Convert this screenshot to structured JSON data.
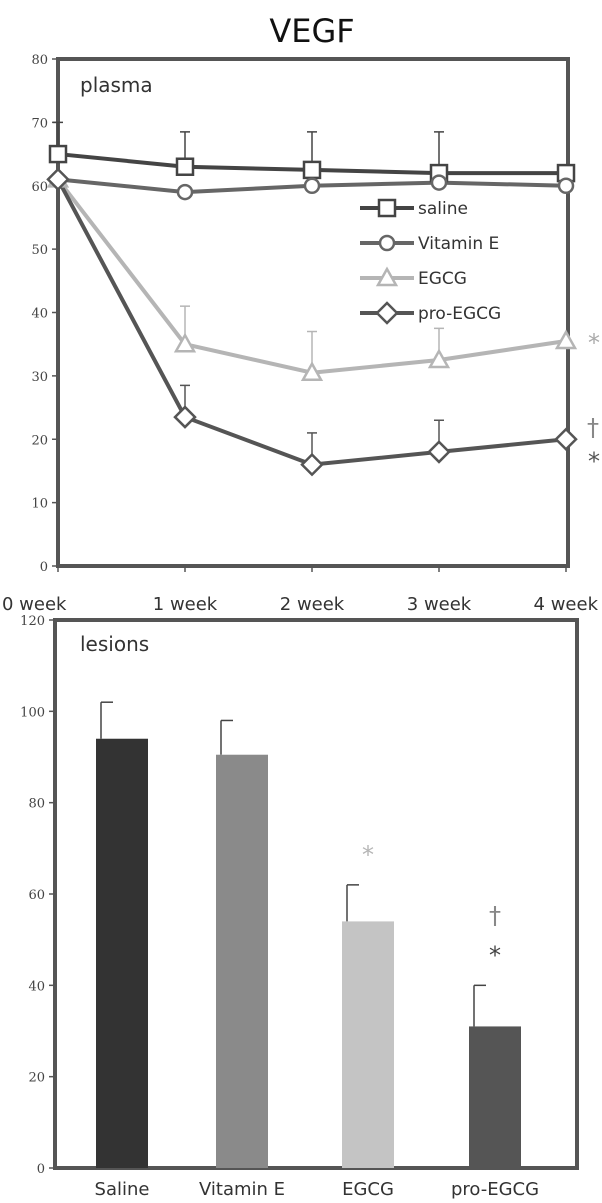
{
  "figure_title": "VEGF",
  "chart_data": [
    {
      "type": "line",
      "panel_label": "plasma",
      "categories": [
        "0 week",
        "1 week",
        "2 week",
        "3 week",
        "4 week"
      ],
      "ylim": [
        0,
        80
      ],
      "yticks": [
        0,
        10,
        20,
        30,
        40,
        50,
        60,
        70,
        80
      ],
      "series": [
        {
          "name": "saline",
          "marker": "square",
          "color": "#444444",
          "values": [
            65,
            63,
            62.5,
            62,
            62
          ],
          "errors": [
            5,
            5.5,
            6,
            6.5,
            0
          ]
        },
        {
          "name": "Vitamin E",
          "marker": "circle",
          "color": "#666666",
          "values": [
            61,
            59,
            60,
            60.5,
            60
          ],
          "errors": [
            0,
            0,
            0,
            0,
            0
          ]
        },
        {
          "name": "EGCG",
          "marker": "triangle",
          "color": "#b5b5b5",
          "values": [
            61,
            35,
            30.5,
            32.5,
            35.5
          ],
          "errors": [
            0,
            6,
            6.5,
            5,
            0
          ]
        },
        {
          "name": "pro-EGCG",
          "marker": "diamond",
          "color": "#555555",
          "values": [
            61,
            23.5,
            16,
            18,
            20
          ],
          "errors": [
            0,
            5,
            5,
            5,
            0
          ]
        }
      ],
      "annotations": [
        {
          "text": "*",
          "series": "EGCG",
          "color": "#aaaaaa"
        },
        {
          "text": "†",
          "series": "pro-EGCG",
          "color": "#888888"
        },
        {
          "text": "*",
          "series": "pro-EGCG",
          "color": "#555555"
        }
      ],
      "legend": "right"
    },
    {
      "type": "bar",
      "panel_label": "lesions",
      "categories": [
        "Saline",
        "Vitamin E",
        "EGCG",
        "pro-EGCG"
      ],
      "values": [
        94,
        90.5,
        54,
        31
      ],
      "errors": [
        8,
        7.5,
        8,
        9
      ],
      "colors": [
        "#333333",
        "#8a8a8a",
        "#c4c4c4",
        "#555555"
      ],
      "ylim": [
        0,
        120
      ],
      "yticks": [
        0,
        20,
        40,
        60,
        80,
        100,
        120
      ],
      "annotations": [
        {
          "category": "EGCG",
          "marks": [
            {
              "text": "*",
              "color": "#b5b5b5"
            }
          ]
        },
        {
          "category": "pro-EGCG",
          "marks": [
            {
              "text": "†",
              "color": "#888888"
            },
            {
              "text": "*",
              "color": "#444444"
            }
          ]
        }
      ]
    }
  ]
}
